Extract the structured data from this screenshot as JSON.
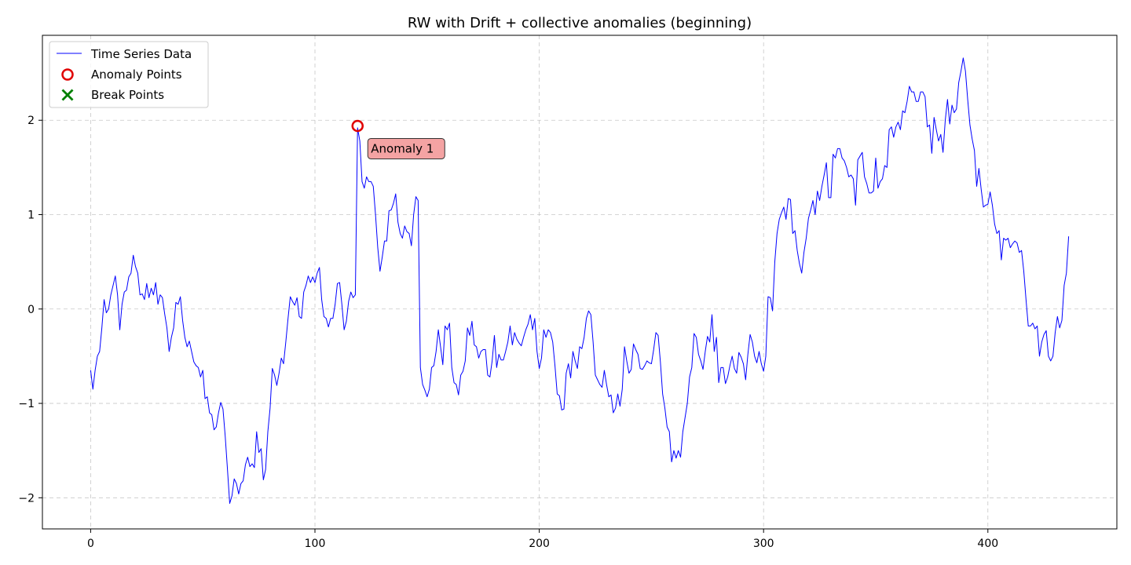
{
  "chart_data": {
    "type": "line",
    "title": "RW with Drift + collective anomalies (beginning)",
    "xlabel": "",
    "ylabel": "",
    "xlim": [
      -21.5,
      457.5
    ],
    "ylim": [
      -2.33,
      2.9
    ],
    "xticks": [
      0,
      100,
      200,
      300,
      400
    ],
    "yticks": [
      -2,
      -1,
      0,
      1,
      2
    ],
    "xtick_labels": [
      "0",
      "100",
      "200",
      "300",
      "400"
    ],
    "ytick_labels": [
      "−2",
      "−1",
      "0",
      "1",
      "2"
    ],
    "grid": true,
    "legend_position": "top-left",
    "legend": [
      {
        "label": "Time Series Data",
        "marker": "line",
        "color": "#0000ff"
      },
      {
        "label": "Anomaly Points",
        "marker": "circle",
        "color": "#e00000"
      },
      {
        "label": "Break Points",
        "marker": "x",
        "color": "#008000"
      }
    ],
    "series": [
      {
        "name": "Time Series Data",
        "color": "#0000ff",
        "x_start": 0,
        "values": [
          -0.65,
          -0.85,
          -0.65,
          -0.5,
          -0.45,
          -0.2,
          0.1,
          -0.04,
          0.0,
          0.15,
          0.25,
          0.35,
          0.15,
          -0.22,
          0.05,
          0.18,
          0.2,
          0.34,
          0.38,
          0.57,
          0.45,
          0.38,
          0.15,
          0.16,
          0.1,
          0.27,
          0.12,
          0.22,
          0.15,
          0.28,
          0.05,
          0.15,
          0.12,
          -0.05,
          -0.2,
          -0.45,
          -0.3,
          -0.2,
          0.07,
          0.05,
          0.13,
          -0.12,
          -0.3,
          -0.4,
          -0.34,
          -0.45,
          -0.56,
          -0.6,
          -0.62,
          -0.72,
          -0.65,
          -0.95,
          -0.93,
          -1.1,
          -1.12,
          -1.28,
          -1.25,
          -1.1,
          -0.99,
          -1.06,
          -1.35,
          -1.7,
          -2.06,
          -1.98,
          -1.8,
          -1.85,
          -1.96,
          -1.85,
          -1.82,
          -1.65,
          -1.57,
          -1.67,
          -1.64,
          -1.68,
          -1.3,
          -1.52,
          -1.48,
          -1.81,
          -1.7,
          -1.3,
          -1.05,
          -0.63,
          -0.7,
          -0.81,
          -0.68,
          -0.52,
          -0.58,
          -0.35,
          -0.1,
          0.13,
          0.08,
          0.04,
          0.12,
          -0.08,
          -0.1,
          0.18,
          0.25,
          0.35,
          0.28,
          0.34,
          0.28,
          0.38,
          0.44,
          0.1,
          -0.08,
          -0.1,
          -0.19,
          -0.1,
          -0.1,
          0.05,
          0.27,
          0.28,
          0.05,
          -0.22,
          -0.13,
          0.08,
          0.18,
          0.12,
          0.15,
          1.92,
          1.78,
          1.35,
          1.28,
          1.4,
          1.35,
          1.35,
          1.3,
          1.0,
          0.65,
          0.4,
          0.55,
          0.72,
          0.72,
          1.04,
          1.05,
          1.12,
          1.22,
          0.92,
          0.8,
          0.75,
          0.88,
          0.82,
          0.8,
          0.67,
          1.0,
          1.19,
          1.15,
          -0.62,
          -0.8,
          -0.86,
          -0.93,
          -0.85,
          -0.62,
          -0.6,
          -0.45,
          -0.22,
          -0.4,
          -0.59,
          -0.18,
          -0.22,
          -0.15,
          -0.62,
          -0.78,
          -0.8,
          -0.91,
          -0.7,
          -0.66,
          -0.55,
          -0.2,
          -0.28,
          -0.13,
          -0.38,
          -0.4,
          -0.52,
          -0.45,
          -0.43,
          -0.43,
          -0.7,
          -0.72,
          -0.55,
          -0.28,
          -0.62,
          -0.48,
          -0.54,
          -0.54,
          -0.45,
          -0.35,
          -0.18,
          -0.38,
          -0.25,
          -0.32,
          -0.36,
          -0.39,
          -0.3,
          -0.22,
          -0.16,
          -0.06,
          -0.22,
          -0.1,
          -0.45,
          -0.63,
          -0.52,
          -0.22,
          -0.3,
          -0.22,
          -0.25,
          -0.35,
          -0.6,
          -0.9,
          -0.92,
          -1.07,
          -1.06,
          -0.68,
          -0.58,
          -0.73,
          -0.45,
          -0.55,
          -0.63,
          -0.4,
          -0.42,
          -0.3,
          -0.1,
          -0.02,
          -0.06,
          -0.35,
          -0.7,
          -0.75,
          -0.8,
          -0.83,
          -0.65,
          -0.8,
          -0.93,
          -0.91,
          -1.1,
          -1.05,
          -0.9,
          -1.03,
          -0.85,
          -0.4,
          -0.55,
          -0.68,
          -0.64,
          -0.37,
          -0.43,
          -0.48,
          -0.63,
          -0.64,
          -0.6,
          -0.55,
          -0.57,
          -0.58,
          -0.43,
          -0.25,
          -0.28,
          -0.56,
          -0.9,
          -1.05,
          -1.25,
          -1.3,
          -1.62,
          -1.5,
          -1.58,
          -1.5,
          -1.57,
          -1.3,
          -1.15,
          -1.0,
          -0.72,
          -0.62,
          -0.26,
          -0.3,
          -0.48,
          -0.55,
          -0.64,
          -0.45,
          -0.29,
          -0.35,
          -0.06,
          -0.45,
          -0.3,
          -0.78,
          -0.62,
          -0.62,
          -0.79,
          -0.72,
          -0.6,
          -0.5,
          -0.63,
          -0.68,
          -0.46,
          -0.51,
          -0.58,
          -0.75,
          -0.48,
          -0.27,
          -0.35,
          -0.5,
          -0.57,
          -0.45,
          -0.58,
          -0.66,
          -0.5,
          0.13,
          0.12,
          -0.02,
          0.5,
          0.8,
          0.95,
          1.02,
          1.08,
          0.95,
          1.17,
          1.16,
          0.8,
          0.83,
          0.62,
          0.48,
          0.38,
          0.6,
          0.75,
          0.96,
          1.05,
          1.15,
          1.0,
          1.25,
          1.15,
          1.3,
          1.42,
          1.55,
          1.18,
          1.18,
          1.64,
          1.6,
          1.7,
          1.7,
          1.6,
          1.57,
          1.5,
          1.4,
          1.42,
          1.38,
          1.1,
          1.58,
          1.62,
          1.66,
          1.4,
          1.33,
          1.23,
          1.23,
          1.25,
          1.6,
          1.28,
          1.35,
          1.38,
          1.52,
          1.5,
          1.9,
          1.93,
          1.82,
          1.93,
          1.98,
          1.9,
          2.1,
          2.08,
          2.2,
          2.36,
          2.3,
          2.3,
          2.2,
          2.2,
          2.3,
          2.3,
          2.25,
          1.93,
          1.95,
          1.65,
          2.03,
          1.9,
          1.78,
          1.85,
          1.66,
          2.0,
          2.22,
          1.96,
          2.16,
          2.08,
          2.12,
          2.4,
          2.52,
          2.66,
          2.52,
          2.22,
          1.95,
          1.8,
          1.68,
          1.3,
          1.49,
          1.27,
          1.08,
          1.1,
          1.11,
          1.24,
          1.1,
          0.9,
          0.8,
          0.83,
          0.52,
          0.75,
          0.73,
          0.75,
          0.65,
          0.69,
          0.72,
          0.7,
          0.6,
          0.62,
          0.4,
          0.1,
          -0.18,
          -0.18,
          -0.15,
          -0.21,
          -0.18,
          -0.5,
          -0.35,
          -0.27,
          -0.23,
          -0.5,
          -0.55,
          -0.5,
          -0.25,
          -0.08,
          -0.2,
          -0.12,
          0.25,
          0.38,
          0.77
        ]
      }
    ],
    "anomaly_points": [
      {
        "x": 119,
        "y": 1.94,
        "label": "Anomaly 1"
      }
    ],
    "break_points": []
  }
}
